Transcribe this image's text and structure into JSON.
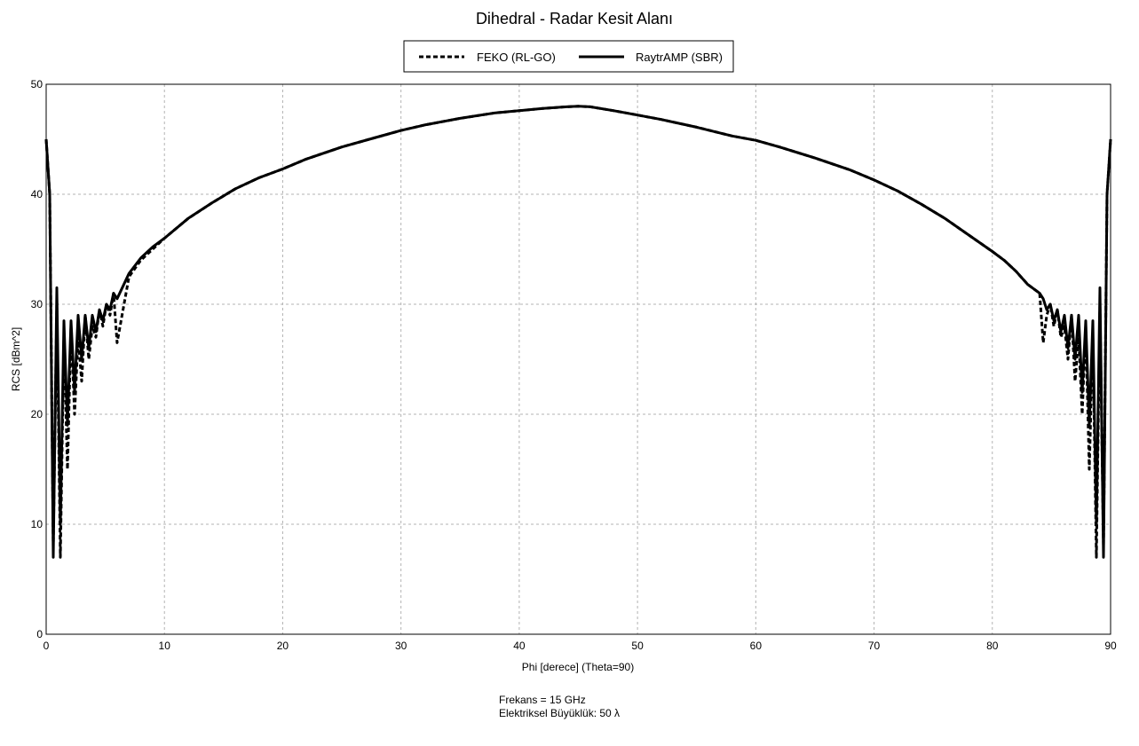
{
  "chart_data": {
    "type": "line",
    "title": "Dihedral - Radar Kesit Alanı",
    "xlabel": "Phi [derece] (Theta=90)",
    "ylabel": "RCS [dBm^2]",
    "xlim": [
      0,
      90
    ],
    "ylim": [
      0,
      50
    ],
    "x_ticks": [
      0,
      10,
      20,
      30,
      40,
      50,
      60,
      70,
      80,
      90
    ],
    "y_ticks": [
      0,
      10,
      20,
      30,
      40,
      50
    ],
    "grid": true,
    "legend_position": "top-center",
    "series": [
      {
        "name": "FEKO (RL-GO)",
        "style": "dashed",
        "color": "#000000",
        "x": [
          0,
          0.3,
          0.6,
          0.9,
          1.2,
          1.5,
          1.8,
          2.1,
          2.4,
          2.7,
          3.0,
          3.3,
          3.6,
          3.9,
          4.2,
          4.5,
          4.8,
          5.1,
          5.4,
          5.7,
          6.0,
          7,
          8,
          9,
          10,
          12,
          14,
          16,
          18,
          20,
          22,
          25,
          28,
          30,
          32,
          35,
          38,
          40,
          42,
          44,
          45,
          46,
          48,
          50,
          52,
          55,
          58,
          60,
          62,
          65,
          68,
          70,
          72,
          74,
          76,
          78,
          80,
          81,
          82,
          83,
          84,
          84.3,
          84.6,
          84.9,
          85.2,
          85.5,
          85.8,
          86.1,
          86.4,
          86.7,
          87.0,
          87.3,
          87.6,
          87.9,
          88.2,
          88.5,
          88.8,
          89.1,
          89.4,
          89.7,
          90
        ],
        "y": [
          45,
          40,
          8,
          30,
          7,
          27,
          15,
          28,
          20,
          27,
          23,
          29,
          25,
          28,
          27,
          29.5,
          28,
          30,
          29,
          31,
          26.5,
          32.5,
          34,
          35,
          36,
          37.8,
          39.2,
          40.5,
          41.5,
          42.3,
          43.2,
          44.3,
          45.2,
          45.8,
          46.3,
          46.9,
          47.4,
          47.6,
          47.8,
          47.95,
          48,
          47.95,
          47.6,
          47.2,
          46.8,
          46.1,
          45.3,
          44.9,
          44.3,
          43.3,
          42.2,
          41.3,
          40.3,
          39.1,
          37.8,
          36.3,
          34.8,
          34.0,
          33.0,
          31.8,
          31,
          26.5,
          29,
          30,
          28,
          29.5,
          27,
          28,
          25,
          29,
          23,
          27,
          20,
          28,
          15,
          27,
          7,
          30,
          8,
          40,
          45
        ]
      },
      {
        "name": "RaytrAMP (SBR)",
        "style": "solid",
        "color": "#000000",
        "x": [
          0,
          0.3,
          0.6,
          0.9,
          1.2,
          1.5,
          1.8,
          2.1,
          2.4,
          2.7,
          3.0,
          3.3,
          3.6,
          3.9,
          4.2,
          4.5,
          4.8,
          5.1,
          5.4,
          5.7,
          6.0,
          7,
          8,
          9,
          10,
          12,
          14,
          16,
          18,
          20,
          22,
          25,
          28,
          30,
          32,
          35,
          38,
          40,
          42,
          44,
          45,
          46,
          48,
          50,
          52,
          55,
          58,
          60,
          62,
          65,
          68,
          70,
          72,
          74,
          76,
          78,
          80,
          81,
          82,
          83,
          84,
          84.3,
          84.6,
          84.9,
          85.2,
          85.5,
          85.8,
          86.1,
          86.4,
          86.7,
          87.0,
          87.3,
          87.6,
          87.9,
          88.2,
          88.5,
          88.8,
          89.1,
          89.4,
          89.7,
          90
        ],
        "y": [
          45,
          40,
          7,
          31.5,
          10,
          28.5,
          19,
          28.5,
          22,
          29,
          25,
          29,
          26,
          29,
          27.5,
          29.5,
          28.5,
          30,
          29.5,
          31,
          30.5,
          32.8,
          34.2,
          35.2,
          36,
          37.8,
          39.2,
          40.5,
          41.5,
          42.3,
          43.2,
          44.3,
          45.2,
          45.8,
          46.3,
          46.9,
          47.4,
          47.6,
          47.8,
          47.95,
          48,
          47.95,
          47.6,
          47.2,
          46.8,
          46.1,
          45.3,
          44.9,
          44.3,
          43.3,
          42.2,
          41.3,
          40.3,
          39.1,
          37.8,
          36.3,
          34.8,
          34.0,
          33.0,
          31.8,
          31,
          30.5,
          29.5,
          30,
          28.5,
          29.5,
          27.5,
          29,
          26,
          29,
          25,
          29,
          22,
          28.5,
          19,
          28.5,
          10,
          31.5,
          7,
          40,
          45
        ]
      }
    ]
  },
  "annotations": {
    "frequency": "Frekans = 15 GHz",
    "electrical_size": "Elektriksel Büyüklük: 50 λ"
  }
}
